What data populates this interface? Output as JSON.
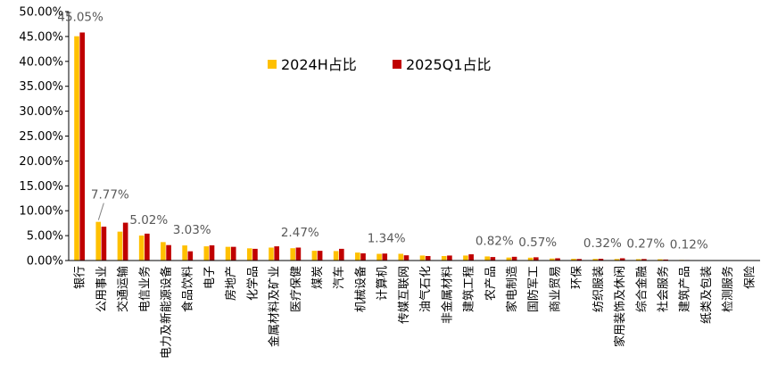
{
  "chart_data": {
    "type": "bar",
    "title": "",
    "xlabel": "",
    "ylabel": "",
    "ylim": [
      0,
      50
    ],
    "yticks": [
      "0.00%",
      "5.00%",
      "10.00%",
      "15.00%",
      "20.00%",
      "25.00%",
      "30.00%",
      "35.00%",
      "40.00%",
      "45.00%",
      "50.00%"
    ],
    "legend_position": "top-right",
    "grid": false,
    "categories": [
      "银行",
      "公用事业",
      "交通运输",
      "电信业务",
      "电力及新能源设备",
      "食品饮料",
      "电子",
      "房地产",
      "化学品",
      "金属材料及矿业",
      "医疗保健",
      "煤炭",
      "汽车",
      "机械设备",
      "计算机",
      "传媒互联网",
      "油气石化",
      "非金属材料",
      "建筑工程",
      "农产品",
      "家电制造",
      "国防军工",
      "商业贸易",
      "环保",
      "纺织服装",
      "家用装饰及休闲",
      "综合金融",
      "社会服务",
      "建筑产品",
      "纸类及包装",
      "检测服务",
      "保险"
    ],
    "series": [
      {
        "name": "2024H占比",
        "color": "#FFC000",
        "values": [
          45.05,
          7.77,
          5.8,
          5.02,
          3.7,
          3.03,
          2.85,
          2.75,
          2.45,
          2.6,
          2.47,
          1.95,
          1.9,
          1.6,
          1.34,
          1.35,
          1.0,
          0.9,
          1.0,
          0.82,
          0.6,
          0.57,
          0.4,
          0.35,
          0.32,
          0.3,
          0.27,
          0.25,
          0.12,
          0.05,
          0.03,
          0.02
        ]
      },
      {
        "name": "2025Q1占比",
        "color": "#C00000",
        "values": [
          45.8,
          6.8,
          7.6,
          5.4,
          3.1,
          1.85,
          3.05,
          2.75,
          2.35,
          2.85,
          2.6,
          1.95,
          2.35,
          1.45,
          1.4,
          1.05,
          0.9,
          1.0,
          1.25,
          0.7,
          0.75,
          0.65,
          0.45,
          0.3,
          0.35,
          0.45,
          0.3,
          0.2,
          0.1,
          0.05,
          0.02,
          0.02
        ]
      }
    ],
    "data_labels": [
      {
        "category_index": 0,
        "text": "45.05%"
      },
      {
        "category_index": 1,
        "text": "7.77%"
      },
      {
        "category_index": 3,
        "text": "5.02%"
      },
      {
        "category_index": 5,
        "text": "3.03%"
      },
      {
        "category_index": 10,
        "text": "2.47%"
      },
      {
        "category_index": 14,
        "text": "1.34%"
      },
      {
        "category_index": 19,
        "text": "0.82%"
      },
      {
        "category_index": 21,
        "text": "0.57%"
      },
      {
        "category_index": 24,
        "text": "0.32%"
      },
      {
        "category_index": 26,
        "text": "0.27%"
      },
      {
        "category_index": 28,
        "text": "0.12%"
      }
    ]
  }
}
